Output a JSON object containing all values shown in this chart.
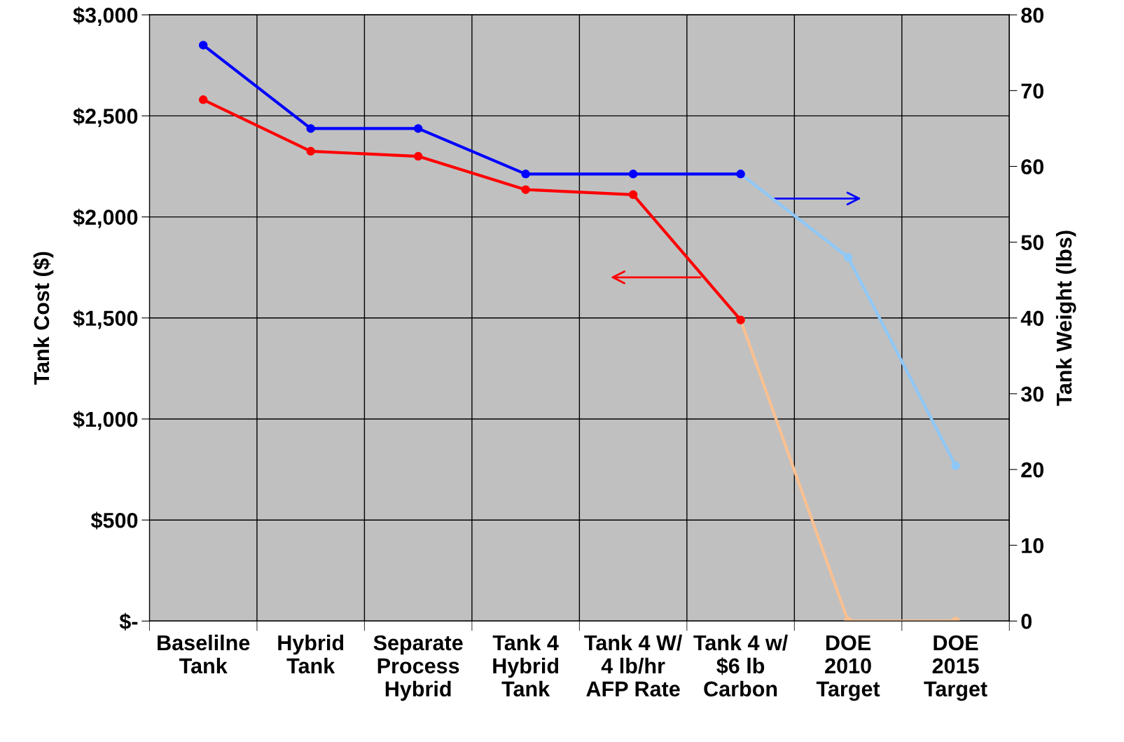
{
  "chart_data": {
    "type": "line",
    "categories": [
      "Baselilne\nTank",
      "Hybrid\nTank",
      "Separate\nProcess\nHybrid",
      "Tank 4\nHybrid\nTank",
      "Tank 4 W/\n4 lb/hr\nAFP Rate",
      "Tank 4 w/\n$6 lb\nCarbon",
      "DOE\n2010\nTarget",
      "DOE\n2015\nTarget"
    ],
    "series": [
      {
        "color": "#fac090",
        "values": [
          null,
          null,
          null,
          null,
          null,
          1490,
          0,
          0
        ]
      },
      {
        "color": "#ff0000",
        "values": [
          2580,
          2325,
          2300,
          2135,
          2110,
          1490,
          null,
          null
        ]
      },
      {
        "color": "#8ec8f8",
        "axis": "y2",
        "values": [
          null,
          null,
          null,
          null,
          null,
          59,
          48,
          20.5
        ]
      },
      {
        "color": "#0000ff",
        "axis": "y2",
        "values": [
          76,
          65,
          65,
          59,
          59,
          59,
          null,
          null
        ]
      }
    ],
    "ylabel": "Tank Cost ($)",
    "y2label": "Tank Weight (lbs)",
    "ylim": [
      0,
      3000
    ],
    "yticks": [
      {
        "value": 0,
        "label": "$-"
      },
      {
        "value": 500,
        "label": "$500"
      },
      {
        "value": 1000,
        "label": "$1,000"
      },
      {
        "value": 1500,
        "label": "$1,500"
      },
      {
        "value": 2000,
        "label": "$2,000"
      },
      {
        "value": 2500,
        "label": "$2,500"
      },
      {
        "value": 3000,
        "label": "$3,000"
      }
    ],
    "y2lim": [
      0,
      80
    ],
    "y2ticks": [
      0,
      10,
      20,
      30,
      40,
      50,
      60,
      70,
      80
    ],
    "grid": true,
    "marker": "circle",
    "line_style": "solid"
  }
}
